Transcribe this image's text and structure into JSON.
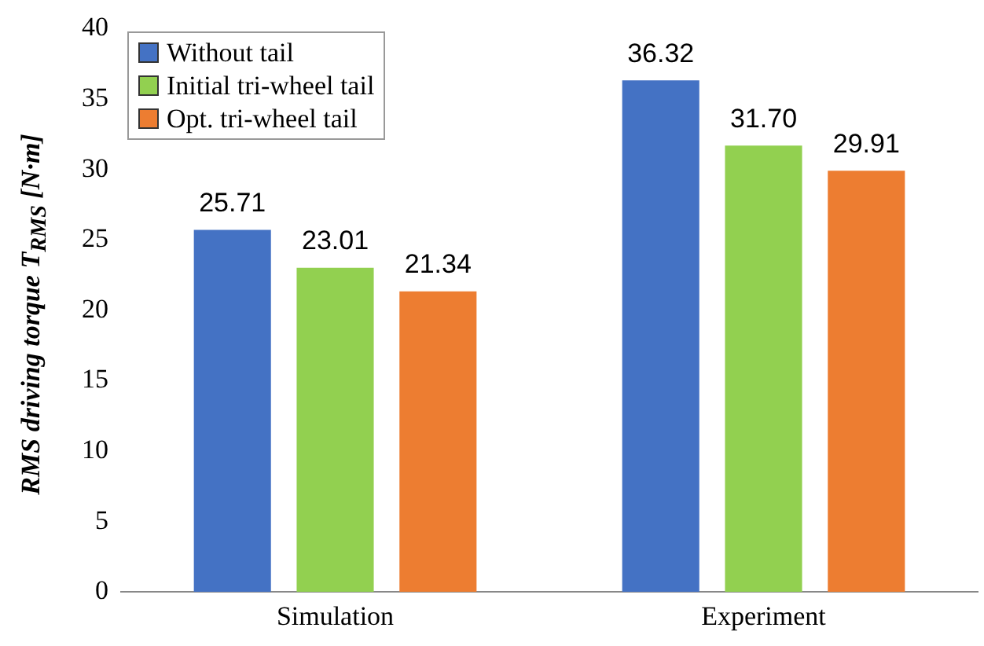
{
  "chart_data": {
    "type": "bar",
    "ylabel": "RMS driving torque T$_{RMS}$ [N·m]",
    "categories": [
      "Simulation",
      "Experiment"
    ],
    "series": [
      {
        "name": "Without tail",
        "color": "#4472c4",
        "values": [
          25.71,
          36.32
        ]
      },
      {
        "name": "Initial tri-wheel tail",
        "color": "#92d050",
        "values": [
          23.01,
          31.7
        ]
      },
      {
        "name": "Opt. tri-wheel tail",
        "color": "#ed7d31",
        "values": [
          21.34,
          29.91
        ]
      }
    ],
    "value_labels": [
      [
        "25.71",
        "36.32"
      ],
      [
        "23.01",
        "31.70"
      ],
      [
        "21.34",
        "29.91"
      ]
    ],
    "ylim": [
      0,
      40
    ],
    "yticks": [
      0,
      5,
      10,
      15,
      20,
      25,
      30,
      35,
      40
    ],
    "grid": false,
    "legend": "top left"
  }
}
